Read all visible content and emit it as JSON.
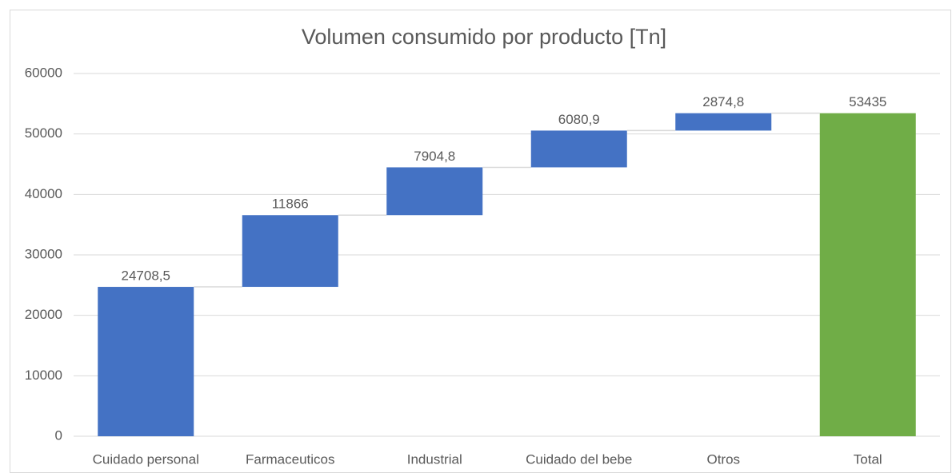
{
  "chart_data": {
    "type": "waterfall",
    "title": "Volumen consumido por producto [Tn]",
    "categories": [
      "Cuidado personal",
      "Farmaceuticos",
      "Industrial",
      "Cuidado del bebe",
      "Otros",
      "Total"
    ],
    "values": [
      24708.5,
      11866,
      7904.8,
      6080.9,
      2874.8,
      53435
    ],
    "value_labels": [
      "24708,5",
      "11866",
      "7904,8",
      "6080,9",
      "2874,8",
      "53435"
    ],
    "is_total": [
      false,
      false,
      false,
      false,
      false,
      true
    ],
    "colors": [
      "#4472c4",
      "#4472c4",
      "#4472c4",
      "#4472c4",
      "#4472c4",
      "#70ad47"
    ],
    "ylim": [
      0,
      60000
    ],
    "yticks": [
      0,
      10000,
      20000,
      30000,
      40000,
      50000,
      60000
    ],
    "grid": true
  }
}
